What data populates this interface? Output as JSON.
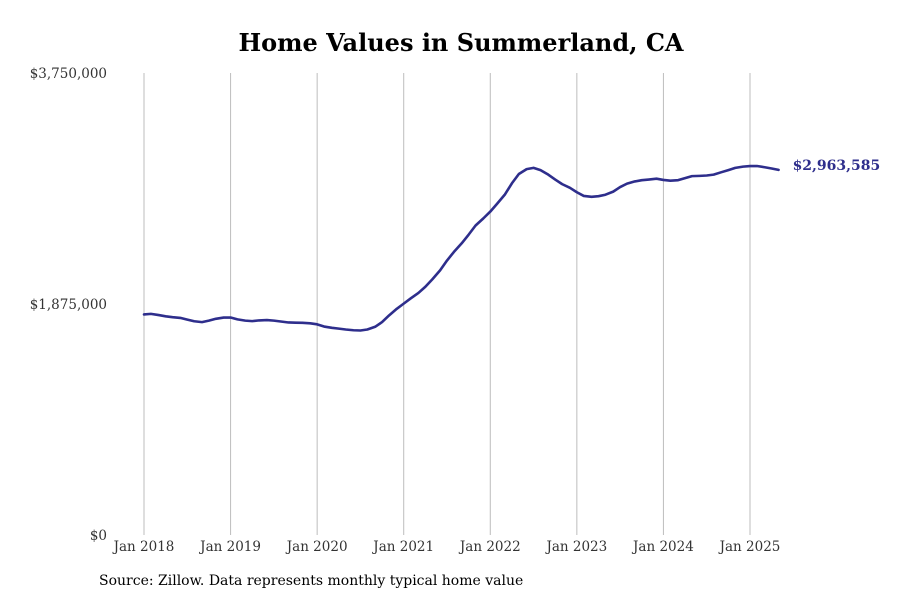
{
  "chart_data": {
    "type": "line",
    "title": "Home Values in Summerland, CA",
    "xlabel": "",
    "ylabel": "",
    "ylim": [
      0,
      3750000
    ],
    "yticks": [
      {
        "value": 0,
        "label": "$0"
      },
      {
        "value": 1875000,
        "label": "$1,875,000"
      },
      {
        "value": 3750000,
        "label": "$3,750,000"
      }
    ],
    "xticks": [
      {
        "value": 2018.0,
        "label": "Jan 2018"
      },
      {
        "value": 2019.0,
        "label": "Jan 2019"
      },
      {
        "value": 2020.0,
        "label": "Jan 2020"
      },
      {
        "value": 2021.0,
        "label": "Jan 2021"
      },
      {
        "value": 2022.0,
        "label": "Jan 2022"
      },
      {
        "value": 2023.0,
        "label": "Jan 2023"
      },
      {
        "value": 2024.0,
        "label": "Jan 2024"
      },
      {
        "value": 2025.0,
        "label": "Jan 2025"
      }
    ],
    "grid": "vertical",
    "legend": "none",
    "color": "#2e2e8c",
    "end_label": "$2,963,585",
    "series": [
      {
        "x": [
          2018.0,
          2018.08,
          2018.17,
          2018.25,
          2018.33,
          2018.42,
          2018.5,
          2018.58,
          2018.67,
          2018.75,
          2018.83,
          2018.92,
          2019.0,
          2019.08,
          2019.17,
          2019.25,
          2019.33,
          2019.42,
          2019.5,
          2019.58,
          2019.67,
          2019.75,
          2019.83,
          2019.92,
          2020.0,
          2020.08,
          2020.17,
          2020.25,
          2020.33,
          2020.42,
          2020.5,
          2020.58,
          2020.67,
          2020.75,
          2020.83,
          2020.92,
          2021.0,
          2021.08,
          2021.17,
          2021.25,
          2021.33,
          2021.42,
          2021.5,
          2021.58,
          2021.67,
          2021.75,
          2021.83,
          2021.92,
          2022.0,
          2022.08,
          2022.17,
          2022.25,
          2022.33,
          2022.42,
          2022.5,
          2022.58,
          2022.67,
          2022.75,
          2022.83,
          2022.92,
          2023.0,
          2023.08,
          2023.17,
          2023.25,
          2023.33,
          2023.42,
          2023.5,
          2023.58,
          2023.67,
          2023.75,
          2023.83,
          2023.92,
          2024.0,
          2024.08,
          2024.17,
          2024.25,
          2024.33,
          2024.42,
          2024.5,
          2024.58,
          2024.67,
          2024.75,
          2024.83,
          2024.92,
          2025.0,
          2025.08,
          2025.17,
          2025.25,
          2025.33
        ],
        "y": [
          1790000,
          1795000,
          1785000,
          1775000,
          1768000,
          1762000,
          1748000,
          1735000,
          1728000,
          1740000,
          1755000,
          1765000,
          1765000,
          1750000,
          1740000,
          1736000,
          1742000,
          1745000,
          1740000,
          1733000,
          1725000,
          1723000,
          1722000,
          1718000,
          1710000,
          1692000,
          1682000,
          1675000,
          1668000,
          1662000,
          1660000,
          1668000,
          1690000,
          1728000,
          1782000,
          1836000,
          1878000,
          1920000,
          1965000,
          2015000,
          2075000,
          2148000,
          2228000,
          2298000,
          2368000,
          2438000,
          2512000,
          2570000,
          2625000,
          2690000,
          2765000,
          2855000,
          2930000,
          2970000,
          2980000,
          2962000,
          2925000,
          2885000,
          2848000,
          2818000,
          2782000,
          2752000,
          2745000,
          2750000,
          2762000,
          2787000,
          2824000,
          2852000,
          2870000,
          2880000,
          2885000,
          2892000,
          2882000,
          2876000,
          2880000,
          2897000,
          2913000,
          2915000,
          2918000,
          2925000,
          2945000,
          2962000,
          2980000,
          2990000,
          2995000,
          2995000,
          2985000,
          2975000,
          2963585
        ]
      }
    ]
  },
  "footer": {
    "source": "Source: Zillow. Data represents monthly typical home value"
  }
}
